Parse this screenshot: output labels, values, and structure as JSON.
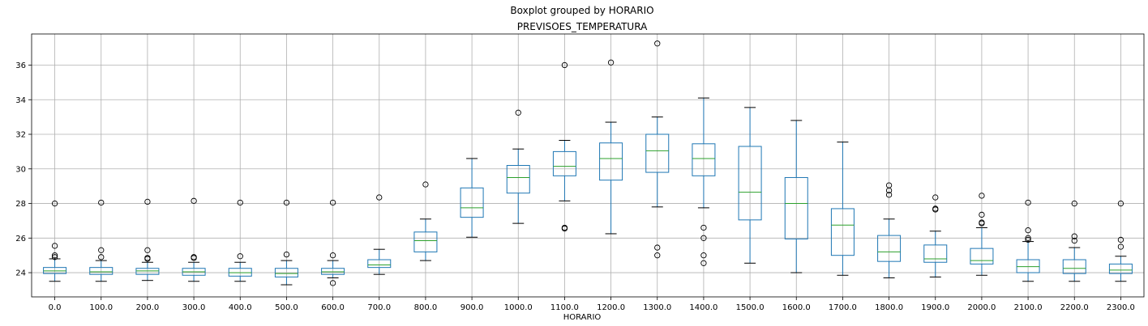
{
  "chart_data": {
    "type": "boxplot",
    "suptitle": "Boxplot grouped by HORARIO",
    "title": "PREVISOES_TEMPERATURA",
    "xlabel": "HORARIO",
    "ylabel": "",
    "ylim": [
      22.6,
      37.8
    ],
    "yticks": [
      24,
      26,
      28,
      30,
      32,
      34,
      36
    ],
    "grid": true,
    "colors": {
      "box": "#1f77b4",
      "median": "#2ca02c",
      "whisker": "#000000",
      "grid": "#b0b0b0",
      "flier": "#000000"
    },
    "categories": [
      "0.0",
      "100.0",
      "200.0",
      "300.0",
      "400.0",
      "500.0",
      "600.0",
      "700.0",
      "800.0",
      "900.0",
      "1000.0",
      "1100.0",
      "1200.0",
      "1300.0",
      "1400.0",
      "1500.0",
      "1600.0",
      "1700.0",
      "1800.0",
      "1900.0",
      "2000.0",
      "2100.0",
      "2200.0",
      "2300.0"
    ],
    "boxes": [
      {
        "whislo": 23.5,
        "q1": 23.95,
        "med": 24.1,
        "q3": 24.3,
        "whishi": 24.8,
        "fliers": [
          28.0,
          25.55,
          25.0,
          24.9
        ]
      },
      {
        "whislo": 23.5,
        "q1": 23.9,
        "med": 24.05,
        "q3": 24.3,
        "whishi": 24.7,
        "fliers": [
          28.05,
          25.3,
          24.9
        ]
      },
      {
        "whislo": 23.55,
        "q1": 23.9,
        "med": 24.1,
        "q3": 24.25,
        "whishi": 24.6,
        "fliers": [
          28.1,
          25.3,
          24.85,
          24.8
        ]
      },
      {
        "whislo": 23.5,
        "q1": 23.85,
        "med": 24.05,
        "q3": 24.25,
        "whishi": 24.6,
        "fliers": [
          28.15,
          24.9,
          24.85
        ]
      },
      {
        "whislo": 23.5,
        "q1": 23.8,
        "med": 24.0,
        "q3": 24.25,
        "whishi": 24.6,
        "fliers": [
          28.05,
          24.95
        ]
      },
      {
        "whislo": 23.3,
        "q1": 23.75,
        "med": 23.95,
        "q3": 24.25,
        "whishi": 24.7,
        "fliers": [
          28.05,
          25.05
        ]
      },
      {
        "whislo": 23.7,
        "q1": 23.9,
        "med": 24.05,
        "q3": 24.25,
        "whishi": 24.7,
        "fliers": [
          28.05,
          25.0,
          23.4
        ]
      },
      {
        "whislo": 23.9,
        "q1": 24.3,
        "med": 24.45,
        "q3": 24.75,
        "whishi": 25.35,
        "fliers": [
          28.35
        ]
      },
      {
        "whislo": 24.7,
        "q1": 25.2,
        "med": 25.85,
        "q3": 26.35,
        "whishi": 27.1,
        "fliers": [
          29.1
        ]
      },
      {
        "whislo": 26.05,
        "q1": 27.2,
        "med": 27.75,
        "q3": 28.9,
        "whishi": 30.6,
        "fliers": []
      },
      {
        "whislo": 26.85,
        "q1": 28.6,
        "med": 29.5,
        "q3": 30.2,
        "whishi": 31.15,
        "fliers": [
          33.25
        ]
      },
      {
        "whislo": 28.15,
        "q1": 29.6,
        "med": 30.15,
        "q3": 31.0,
        "whishi": 31.65,
        "fliers": [
          36.0,
          26.6,
          26.55
        ]
      },
      {
        "whislo": 26.25,
        "q1": 29.35,
        "med": 30.6,
        "q3": 31.5,
        "whishi": 32.7,
        "fliers": [
          36.15
        ]
      },
      {
        "whislo": 27.8,
        "q1": 29.8,
        "med": 31.05,
        "q3": 32.0,
        "whishi": 33.0,
        "fliers": [
          37.25,
          25.45,
          25.0
        ]
      },
      {
        "whislo": 27.75,
        "q1": 29.6,
        "med": 30.6,
        "q3": 31.45,
        "whishi": 34.1,
        "fliers": [
          26.6,
          26.0,
          25.0,
          24.55
        ]
      },
      {
        "whislo": 24.55,
        "q1": 27.05,
        "med": 28.65,
        "q3": 31.3,
        "whishi": 33.55,
        "fliers": []
      },
      {
        "whislo": 24.0,
        "q1": 25.95,
        "med": 28.0,
        "q3": 29.5,
        "whishi": 32.8,
        "fliers": []
      },
      {
        "whislo": 23.85,
        "q1": 25.0,
        "med": 26.75,
        "q3": 27.7,
        "whishi": 31.55,
        "fliers": []
      },
      {
        "whislo": 23.7,
        "q1": 24.65,
        "med": 25.2,
        "q3": 26.15,
        "whishi": 27.1,
        "fliers": [
          29.05,
          28.75,
          28.5
        ]
      },
      {
        "whislo": 23.75,
        "q1": 24.6,
        "med": 24.8,
        "q3": 25.6,
        "whishi": 26.4,
        "fliers": [
          28.35,
          27.7,
          27.65
        ]
      },
      {
        "whislo": 23.85,
        "q1": 24.5,
        "med": 24.7,
        "q3": 25.4,
        "whishi": 26.6,
        "fliers": [
          28.45,
          27.35,
          26.9,
          26.85
        ]
      },
      {
        "whislo": 23.5,
        "q1": 24.0,
        "med": 24.35,
        "q3": 24.75,
        "whishi": 25.8,
        "fliers": [
          28.05,
          26.45,
          26.0,
          25.9
        ]
      },
      {
        "whislo": 23.5,
        "q1": 23.95,
        "med": 24.25,
        "q3": 24.75,
        "whishi": 25.45,
        "fliers": [
          28.0,
          26.1,
          25.85
        ]
      },
      {
        "whislo": 23.5,
        "q1": 23.95,
        "med": 24.15,
        "q3": 24.5,
        "whishi": 24.95,
        "fliers": [
          28.0,
          25.9,
          25.5
        ]
      }
    ]
  }
}
